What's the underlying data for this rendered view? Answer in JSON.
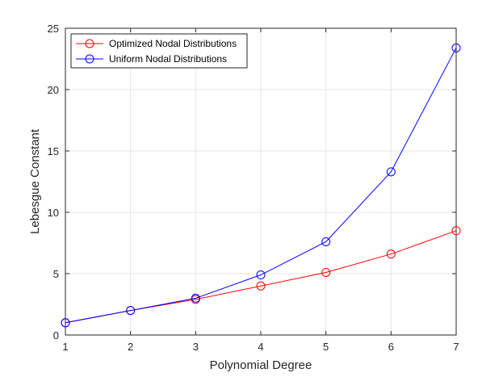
{
  "chart_data": {
    "type": "line",
    "xlabel": "Polynomial Degree",
    "ylabel": "Lebesgue Constant",
    "xlim": [
      1,
      7
    ],
    "ylim": [
      0,
      25
    ],
    "xticks": [
      "1",
      "2",
      "3",
      "4",
      "5",
      "6",
      "7"
    ],
    "yticks": [
      "0",
      "5",
      "10",
      "15",
      "20",
      "25"
    ],
    "grid": true,
    "legend_position": "top-left",
    "x": [
      1,
      2,
      3,
      4,
      5,
      6,
      7
    ],
    "series": [
      {
        "name": "Optimized Nodal Distributions",
        "color": "#ff0000",
        "marker": "circle",
        "values": [
          1.0,
          2.0,
          2.9,
          4.0,
          5.1,
          6.6,
          8.5
        ]
      },
      {
        "name": "Uniform Nodal Distributions",
        "color": "#0000ff",
        "marker": "circle",
        "values": [
          1.0,
          2.0,
          3.0,
          4.9,
          7.6,
          13.3,
          23.4
        ]
      }
    ]
  }
}
